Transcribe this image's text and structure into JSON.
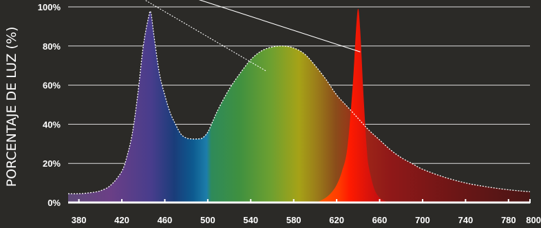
{
  "chart_data": {
    "type": "area",
    "title": "",
    "xlabel": "",
    "ylabel": "PORCENTAJE DE LUZ (%)",
    "xlim": [
      370,
      800
    ],
    "ylim": [
      0,
      100
    ],
    "grid": true,
    "x_ticks": [
      380,
      420,
      460,
      500,
      540,
      580,
      620,
      660,
      700,
      740,
      780,
      800
    ],
    "y_ticks": [
      0,
      20,
      40,
      60,
      80,
      100
    ],
    "y_tick_labels": [
      "0%",
      "20%",
      "40%",
      "60%",
      "80%",
      "100%"
    ],
    "colors": {
      "background": "#2b2a27",
      "grid": "#e0e0e0",
      "axis": "#ffffff",
      "text": "#ffffff",
      "envelope_stroke": "#ffffff",
      "red_peak": "#ff2a00"
    },
    "series": [
      {
        "style": "spectral-gradient-fill-dashed-outline",
        "x": [
          370,
          380,
          390,
          400,
          410,
          420,
          425,
          430,
          435,
          440,
          445,
          447,
          450,
          455,
          460,
          465,
          470,
          475,
          480,
          485,
          490,
          495,
          500,
          505,
          510,
          520,
          530,
          540,
          550,
          560,
          570,
          580,
          590,
          600,
          610,
          620,
          630,
          640,
          650,
          660,
          670,
          680,
          690,
          700,
          720,
          740,
          760,
          780,
          800
        ],
        "y": [
          4.5,
          4.5,
          5,
          6,
          9,
          16,
          24,
          36,
          56,
          80,
          95,
          97,
          85,
          66,
          55,
          46,
          40,
          35,
          33,
          32.5,
          32.5,
          33,
          36,
          42,
          48,
          58,
          66,
          73,
          77.5,
          79.5,
          80,
          79,
          76,
          70,
          63,
          55,
          49,
          43,
          37,
          32,
          27,
          23,
          20,
          17,
          13,
          10,
          8,
          6.5,
          5.5
        ]
      },
      {
        "style": "narrow-red-peak",
        "x": [
          600,
          605,
          610,
          615,
          620,
          625,
          630,
          635,
          638,
          640,
          642,
          645,
          648,
          650,
          655,
          660,
          665,
          670
        ],
        "y": [
          0,
          1,
          2.5,
          5,
          9,
          16,
          28,
          60,
          88,
          99,
          88,
          55,
          28,
          18,
          7,
          2.5,
          0.8,
          0
        ]
      }
    ],
    "reference_lines": [
      {
        "style": "dotted",
        "x": [
          440,
          555
        ],
        "y": [
          104,
          67
        ]
      },
      {
        "style": "solid",
        "x": [
          490,
          642
        ],
        "y": [
          104,
          77
        ]
      }
    ]
  }
}
